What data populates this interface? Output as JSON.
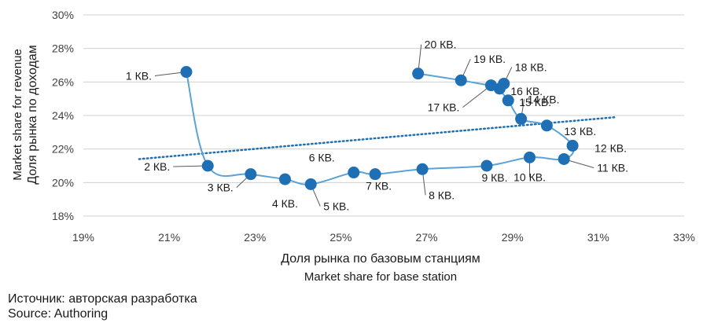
{
  "chart_data": {
    "type": "scatter",
    "xlabel": "Доля рынка по базовым станциям",
    "xlabel_en": "Market share for base station",
    "ylabel": "Доля рынка по доходам",
    "ylabel_en": "Market share for revenue",
    "xlim": [
      19,
      33
    ],
    "ylim": [
      18,
      30
    ],
    "x_ticks": [
      19,
      21,
      23,
      25,
      27,
      29,
      31,
      33
    ],
    "x_tick_labels": [
      "19%",
      "21%",
      "23%",
      "25%",
      "27%",
      "29%",
      "31%",
      "33%"
    ],
    "y_ticks": [
      18,
      20,
      22,
      24,
      26,
      28,
      30
    ],
    "y_tick_labels": [
      "18%",
      "20%",
      "22%",
      "24%",
      "26%",
      "28%",
      "30%"
    ],
    "grid": "horizontal",
    "series_color": "#1f6fb4",
    "line_color": "#5ba3d6",
    "points": [
      {
        "label": "1 КВ.",
        "x": 21.4,
        "y": 26.6
      },
      {
        "label": "2 КВ.",
        "x": 21.9,
        "y": 21.0
      },
      {
        "label": "3 КВ.",
        "x": 22.9,
        "y": 20.5
      },
      {
        "label": "4 КВ.",
        "x": 23.7,
        "y": 20.2
      },
      {
        "label": "5 КВ.",
        "x": 24.3,
        "y": 19.9
      },
      {
        "label": "6 КВ.",
        "x": 25.3,
        "y": 20.6
      },
      {
        "label": "7 КВ.",
        "x": 25.8,
        "y": 20.5
      },
      {
        "label": "8 КВ.",
        "x": 26.9,
        "y": 20.8
      },
      {
        "label": "9 КВ.",
        "x": 28.4,
        "y": 21.0
      },
      {
        "label": "10 КВ.",
        "x": 29.4,
        "y": 21.5
      },
      {
        "label": "11 КВ.",
        "x": 30.2,
        "y": 21.4
      },
      {
        "label": "12 КВ.",
        "x": 30.4,
        "y": 22.2
      },
      {
        "label": "13 КВ.",
        "x": 29.8,
        "y": 23.4
      },
      {
        "label": "14 КВ.",
        "x": 29.2,
        "y": 23.8
      },
      {
        "label": "15 КВ.",
        "x": 28.9,
        "y": 24.9
      },
      {
        "label": "16 КВ.",
        "x": 28.7,
        "y": 25.6
      },
      {
        "label": "18 КВ.",
        "x": 28.8,
        "y": 25.9
      },
      {
        "label": "17 КВ.",
        "x": 28.5,
        "y": 25.8
      },
      {
        "label": "19 КВ.",
        "x": 27.8,
        "y": 26.1
      },
      {
        "label": "20 КВ.",
        "x": 26.8,
        "y": 26.5
      }
    ],
    "trendline": {
      "style": "dotted",
      "from": {
        "x": 20.3,
        "y": 21.4
      },
      "to": {
        "x": 31.4,
        "y": 23.9
      }
    }
  },
  "source": {
    "ru": "Источник: авторская разработка",
    "en": "Source: Authoring"
  }
}
